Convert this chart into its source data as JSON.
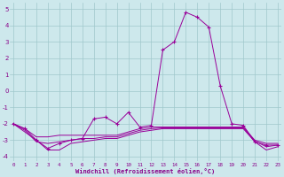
{
  "x": [
    0,
    1,
    2,
    3,
    4,
    5,
    6,
    7,
    8,
    9,
    10,
    11,
    12,
    13,
    14,
    15,
    16,
    17,
    18,
    19,
    20,
    21,
    22,
    23
  ],
  "line_main": [
    -2.0,
    -2.3,
    -3.0,
    -3.5,
    -3.2,
    -3.0,
    -2.9,
    -1.7,
    -1.6,
    -2.0,
    -1.3,
    -2.2,
    -2.1,
    2.5,
    3.0,
    4.8,
    4.5,
    3.9,
    0.3,
    -2.0,
    -2.1,
    -3.1,
    -3.3,
    -3.3
  ],
  "line_upper": [
    -2.0,
    -2.3,
    -2.8,
    -2.8,
    -2.7,
    -2.7,
    -2.7,
    -2.7,
    -2.7,
    -2.7,
    -2.5,
    -2.3,
    -2.2,
    -2.2,
    -2.2,
    -2.2,
    -2.2,
    -2.2,
    -2.2,
    -2.2,
    -2.2,
    -3.0,
    -3.2,
    -3.2
  ],
  "line_lower": [
    -2.0,
    -2.5,
    -3.0,
    -3.6,
    -3.6,
    -3.2,
    -3.1,
    -3.0,
    -2.9,
    -2.9,
    -2.7,
    -2.5,
    -2.4,
    -2.3,
    -2.3,
    -2.3,
    -2.3,
    -2.3,
    -2.3,
    -2.3,
    -2.3,
    -3.1,
    -3.6,
    -3.4
  ],
  "line_mid": [
    -2.0,
    -2.4,
    -3.1,
    -3.2,
    -3.1,
    -3.0,
    -2.9,
    -2.9,
    -2.8,
    -2.8,
    -2.6,
    -2.4,
    -2.3,
    -2.25,
    -2.25,
    -2.25,
    -2.25,
    -2.25,
    -2.25,
    -2.25,
    -2.25,
    -3.05,
    -3.4,
    -3.3
  ],
  "bg_color": "#cde8ec",
  "line_color": "#990099",
  "grid_color": "#a0c8cc",
  "ylim": [
    -4.3,
    5.4
  ],
  "yticks": [
    -4,
    -3,
    -2,
    -1,
    0,
    1,
    2,
    3,
    4,
    5
  ],
  "xlim": [
    -0.3,
    23.3
  ],
  "xlabel": "Windchill (Refroidissement éolien,°C)",
  "font_color": "#880088",
  "marker": "+"
}
